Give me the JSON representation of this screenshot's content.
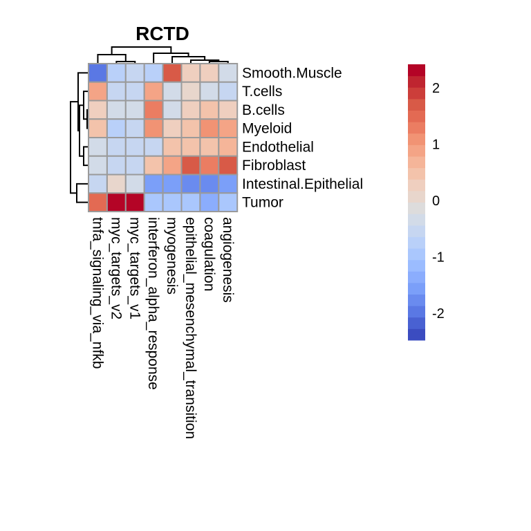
{
  "chart_data": {
    "type": "heatmap",
    "title": "RCTD",
    "rows": [
      "Smooth.Muscle",
      "T.cells",
      "B.cells",
      "Myeloid",
      "Endothelial",
      "Fibroblast",
      "Intestinal.Epithelial",
      "Tumor"
    ],
    "columns": [
      "tnfa_signaling_via_nfkb",
      "myc_targets_v2",
      "myc_targets_v1",
      "interferon_alpha_response",
      "myogenesis",
      "epithelial_mesenchymal_transition",
      "coagulation",
      "angiogenesis"
    ],
    "values": [
      [
        -2.05,
        -0.7,
        -0.5,
        -0.7,
        1.7,
        0.3,
        0.3,
        -0.25
      ],
      [
        0.9,
        -0.5,
        -0.5,
        0.9,
        -0.25,
        0.05,
        -0.25,
        -0.5
      ],
      [
        0.3,
        -0.25,
        -0.25,
        1.2,
        -0.25,
        0.3,
        0.55,
        0.3
      ],
      [
        0.55,
        -0.7,
        -0.5,
        1.1,
        0.3,
        0.55,
        1.1,
        0.9
      ],
      [
        -0.25,
        -0.5,
        -0.5,
        -0.5,
        0.55,
        0.55,
        0.55,
        0.75
      ],
      [
        -0.25,
        -0.5,
        -0.5,
        0.55,
        0.9,
        1.7,
        1.2,
        1.7
      ],
      [
        -0.5,
        0.05,
        -0.25,
        -1.6,
        -1.6,
        -1.85,
        -1.85,
        -1.6
      ],
      [
        1.45,
        2.35,
        2.35,
        -0.95,
        -1.05,
        -1.05,
        -1.3,
        -1.05
      ]
    ],
    "colorbar": {
      "range": [
        -2.48,
        2.42
      ],
      "ticks": [
        2,
        1,
        0,
        -1,
        -2
      ],
      "tick_labels": [
        "2",
        "1",
        "0",
        "-1",
        "-2"
      ],
      "colors": [
        "#3B4CC0",
        "#4961D2",
        "#5A78E4",
        "#6A8BEF",
        "#7B9FF9",
        "#8BADFD",
        "#9BBCFF",
        "#AAC7FD",
        "#B9D0F9",
        "#C6D6F1",
        "#D2DBE8",
        "#DDDCDC",
        "#E8D6CC",
        "#EFCFBF",
        "#F3C3AB",
        "#F5B599",
        "#F4A486",
        "#F19374",
        "#EB7D62",
        "#E36A53",
        "#D85A47",
        "#CC3E3A",
        "#BF2530",
        "#B40426"
      ]
    },
    "row_dendrogram": {
      "merges": [
        {
          "left": "B.cells",
          "right": "Myeloid",
          "height": 0.12
        },
        {
          "left": "T.cells",
          "right": "B.cells+Myeloid",
          "height": 0.24
        },
        {
          "left": "Endothelial",
          "right": "Fibroblast",
          "height": 0.24
        },
        {
          "left": "T.cells+B.cells+Myeloid",
          "right": "Endothelial+Fibroblast",
          "height": 0.5
        },
        {
          "left": "Smooth.Muscle",
          "right": "rest",
          "height": 0.58
        },
        {
          "left": "Intestinal.Epithelial",
          "right": "Tumor",
          "height": 0.65
        },
        {
          "left": "top",
          "right": "bottom",
          "height": 1.0
        }
      ]
    },
    "col_dendrogram": {
      "merges": [
        {
          "left": "myc_targets_v2",
          "right": "myc_targets_v1",
          "height": 0.1
        },
        {
          "left": "coagulation",
          "right": "angiogenesis",
          "height": 0.14
        },
        {
          "left": "epithelial_mesenchymal_transition",
          "right": "coagulation+angiogenesis",
          "height": 0.2
        },
        {
          "left": "myogenesis",
          "right": "emt+coag+angio",
          "height": 0.45
        },
        {
          "left": "interferon_alpha_response",
          "right": "myogenesis+...",
          "height": 0.6
        },
        {
          "left": "tnfa_signaling_via_nfkb",
          "right": "myc_targets_v2+myc_targets_v1",
          "height": 0.55
        },
        {
          "left": "left",
          "right": "right",
          "height": 1.0
        }
      ]
    }
  }
}
